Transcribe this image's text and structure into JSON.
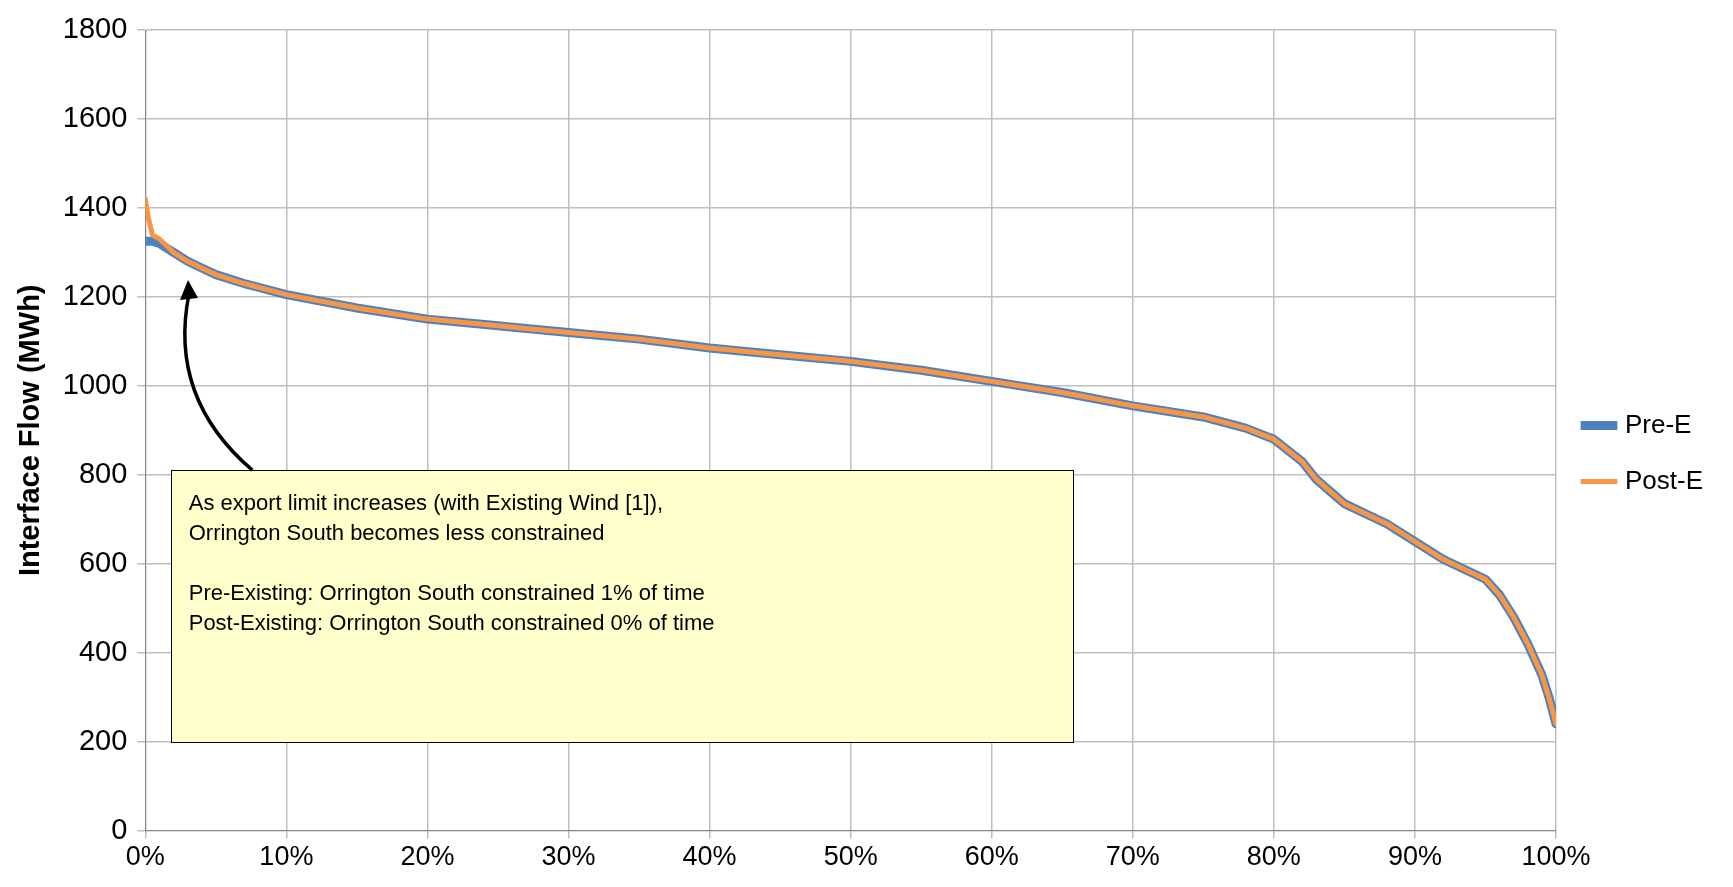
{
  "chart_data": {
    "type": "line",
    "ylabel": "Interface Flow (MWh)",
    "xlim": [
      0,
      100
    ],
    "xticks": [
      {
        "value": 0,
        "label": "0%"
      },
      {
        "value": 10,
        "label": "10%"
      },
      {
        "value": 20,
        "label": "20%"
      },
      {
        "value": 30,
        "label": "30%"
      },
      {
        "value": 40,
        "label": "40%"
      },
      {
        "value": 50,
        "label": "50%"
      },
      {
        "value": 60,
        "label": "60%"
      },
      {
        "value": 70,
        "label": "70%"
      },
      {
        "value": 80,
        "label": "80%"
      },
      {
        "value": 90,
        "label": "90%"
      },
      {
        "value": 100,
        "label": "100%"
      }
    ],
    "ylim": [
      0,
      1800
    ],
    "yticks": [
      0,
      200,
      400,
      600,
      800,
      1000,
      1200,
      1400,
      1600,
      1800
    ],
    "grid": true,
    "legend": "right",
    "marker": "none",
    "line_style": "solid",
    "series": [
      {
        "name": "Pre-E",
        "color": "#4f81bd",
        "x": [
          0,
          0.5,
          1,
          2,
          3,
          4,
          5,
          7,
          10,
          15,
          20,
          25,
          30,
          35,
          40,
          45,
          50,
          55,
          60,
          65,
          70,
          75,
          78,
          80,
          82,
          83,
          85,
          88,
          90,
          92,
          95,
          96,
          97,
          98,
          99,
          99.5,
          100
        ],
        "values": [
          1325,
          1325,
          1320,
          1300,
          1280,
          1265,
          1250,
          1230,
          1205,
          1175,
          1150,
          1135,
          1120,
          1105,
          1085,
          1070,
          1055,
          1035,
          1010,
          985,
          955,
          930,
          905,
          880,
          830,
          790,
          735,
          690,
          650,
          610,
          565,
          530,
          480,
          420,
          350,
          300,
          240
        ]
      },
      {
        "name": "Post-E",
        "color": "#f79646",
        "x": [
          0,
          0.2,
          0.5,
          1,
          2,
          3,
          4,
          5,
          7,
          10,
          15,
          20,
          25,
          30,
          35,
          40,
          45,
          50,
          55,
          60,
          65,
          70,
          75,
          78,
          80,
          82,
          83,
          85,
          88,
          90,
          92,
          95,
          96,
          97,
          98,
          99,
          99.5,
          100
        ],
        "values": [
          1420,
          1380,
          1340,
          1330,
          1300,
          1280,
          1265,
          1250,
          1230,
          1205,
          1175,
          1150,
          1135,
          1120,
          1105,
          1085,
          1070,
          1055,
          1035,
          1010,
          985,
          955,
          930,
          905,
          880,
          830,
          790,
          735,
          690,
          650,
          610,
          565,
          530,
          480,
          420,
          350,
          300,
          240
        ]
      }
    ],
    "annotations": [
      "As export limit increases (with Existing Wind [1]), Orrington South becomes less constrained",
      "Pre-Existing: Orrington South constrained 1% of time",
      "Post-Existing: Orrington South constrained 0% of time"
    ]
  }
}
